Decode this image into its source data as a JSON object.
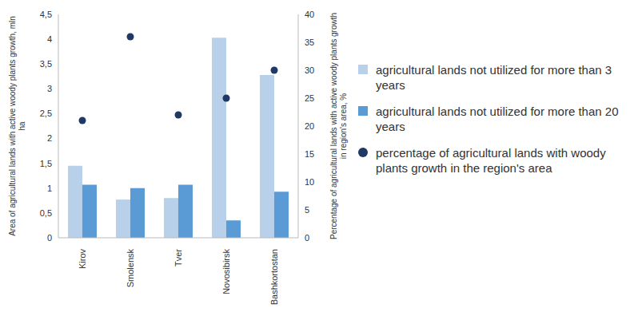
{
  "chart_data": {
    "type": "bar",
    "categories": [
      "Kirov",
      "Smolensk",
      "Tver",
      "Novosibirsk",
      "Bashkortostan"
    ],
    "y_label": "Area of agricultural lands with active woody plants growth, mln ha",
    "y2_label": "Percentage of agricultural lands with active woody plants growth in region's area, %",
    "ylim": [
      0,
      4.5
    ],
    "yticks": [
      0,
      {
        "value": 0.5,
        "label": "0,5"
      },
      1,
      {
        "value": 1.5,
        "label": "1,5"
      },
      2,
      {
        "value": 2.5,
        "label": "2,5"
      },
      3,
      {
        "value": 3.5,
        "label": "3,5"
      },
      4,
      {
        "value": 4.5,
        "label": "4,5"
      }
    ],
    "y2lim": [
      0,
      40
    ],
    "y2ticks": [
      0,
      5,
      10,
      15,
      20,
      25,
      30,
      35,
      40
    ],
    "grid": false,
    "legend": "right",
    "series": [
      {
        "name": "agricultural lands not utilized for more than 3 years",
        "type": "bar",
        "color": "#b8d0ea",
        "values": [
          1.45,
          0.77,
          0.8,
          4.03,
          3.28
        ]
      },
      {
        "name": "agricultural lands not utilized for more than 20 years",
        "type": "bar",
        "color": "#5b9bd5",
        "values": [
          1.07,
          1.0,
          1.07,
          0.35,
          0.93
        ]
      },
      {
        "name": "percentage of agricultural lands with woody plants growth in the region's area",
        "type": "scatter",
        "color": "#1f3864",
        "marker": "circle",
        "axis": "y2",
        "values": [
          21,
          36,
          22,
          25,
          30
        ]
      }
    ]
  }
}
